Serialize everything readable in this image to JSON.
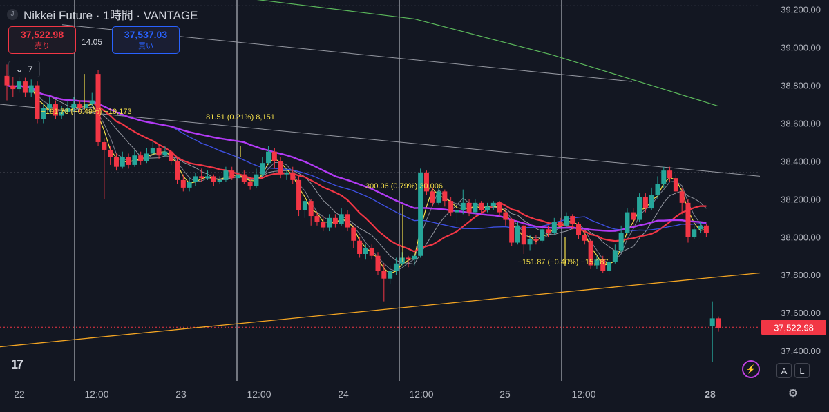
{
  "header": {
    "symbol_letter": "J",
    "title": "Nikkei Future · 1時間 · VANTAGE"
  },
  "trade": {
    "sell_price": "37,522.98",
    "sell_label": "売り",
    "spread": "14.05",
    "buy_price": "37,537.03",
    "buy_label": "買い"
  },
  "indicators_count": "7",
  "scale_buttons": {
    "auto": "A",
    "log": "L"
  },
  "colors": {
    "background": "#131722",
    "up": "#26a69a",
    "down": "#f23645",
    "ma_yellow": "#f5e04a",
    "ma_red": "#f23645",
    "ma_purple": "#b23af5",
    "ma_blue": "#3d4fe0",
    "ma_gray": "#9598a1",
    "trend_orange": "#f5a623",
    "trend_green": "#5bb85b"
  },
  "chart_data": {
    "type": "candlestick",
    "y_ticks": [
      "39,200.00",
      "39,000.00",
      "38,800.00",
      "38,600.00",
      "38,400.00",
      "38,200.00",
      "38,000.00",
      "37,800.00",
      "37,600.00",
      "37,400.00"
    ],
    "ylim": [
      37240,
      39250
    ],
    "x_labels": [
      "22",
      "12:00",
      "23",
      "12:00",
      "24",
      "12:00",
      "25",
      "12:00",
      "28"
    ],
    "current_price_label": "37,522.98",
    "annotations": [
      "−191.73 (−0.49%) −19,173",
      "81.51 (0.21%) 8,151",
      "300.06 (0.79%) 30,006",
      "−151.87 (−0.40%) −15,187"
    ],
    "candles": [
      [
        38850,
        38800,
        38910,
        38720
      ],
      [
        38800,
        38780,
        38850,
        38740
      ],
      [
        38780,
        38820,
        38860,
        38760
      ],
      [
        38820,
        38760,
        38840,
        38740
      ],
      [
        38760,
        38800,
        38830,
        38740
      ],
      [
        38800,
        38620,
        38820,
        38600
      ],
      [
        38620,
        38680,
        38700,
        38600
      ],
      [
        38680,
        38700,
        38740,
        38660
      ],
      [
        38700,
        38640,
        38720,
        38620
      ],
      [
        38640,
        38660,
        38690,
        38620
      ],
      [
        38660,
        38680,
        38720,
        38650
      ],
      [
        38680,
        38700,
        38740,
        38660
      ],
      [
        38700,
        38680,
        38720,
        38660
      ],
      [
        38680,
        38700,
        38730,
        38670
      ],
      [
        38700,
        38720,
        38760,
        38690
      ],
      [
        38860,
        38500,
        38880,
        38480
      ],
      [
        38500,
        38460,
        38520,
        38200
      ],
      [
        38460,
        38420,
        38480,
        38380
      ],
      [
        38420,
        38370,
        38440,
        38350
      ],
      [
        38370,
        38420,
        38450,
        38360
      ],
      [
        38420,
        38380,
        38440,
        38360
      ],
      [
        38380,
        38430,
        38460,
        38370
      ],
      [
        38430,
        38400,
        38450,
        38380
      ],
      [
        38400,
        38440,
        38470,
        38390
      ],
      [
        38440,
        38470,
        38510,
        38430
      ],
      [
        38470,
        38430,
        38490,
        38410
      ],
      [
        38430,
        38450,
        38480,
        38420
      ],
      [
        38450,
        38400,
        38460,
        38380
      ],
      [
        38400,
        38300,
        38420,
        38280
      ],
      [
        38300,
        38260,
        38330,
        38240
      ],
      [
        38260,
        38290,
        38310,
        38240
      ],
      [
        38290,
        38320,
        38340,
        38270
      ],
      [
        38320,
        38310,
        38360,
        38290
      ],
      [
        38310,
        38320,
        38350,
        38300
      ],
      [
        38320,
        38290,
        38330,
        38270
      ],
      [
        38290,
        38300,
        38320,
        38280
      ],
      [
        38300,
        38350,
        38370,
        38290
      ],
      [
        38350,
        38310,
        38370,
        38300
      ],
      [
        38310,
        38330,
        38350,
        38290
      ],
      [
        38330,
        38290,
        38350,
        38280
      ],
      [
        38290,
        38270,
        38310,
        38250
      ],
      [
        38270,
        38330,
        38360,
        38260
      ],
      [
        38330,
        38390,
        38420,
        38320
      ],
      [
        38390,
        38450,
        38480,
        38380
      ],
      [
        38450,
        38400,
        38470,
        38360
      ],
      [
        38400,
        38330,
        38420,
        38310
      ],
      [
        38330,
        38340,
        38360,
        38300
      ],
      [
        38340,
        38300,
        38370,
        38280
      ],
      [
        38300,
        38140,
        38320,
        38110
      ],
      [
        38140,
        38190,
        38200,
        38100
      ],
      [
        38190,
        38110,
        38200,
        38060
      ],
      [
        38110,
        38080,
        38130,
        38060
      ],
      [
        38080,
        38050,
        38110,
        38030
      ],
      [
        38050,
        38100,
        38120,
        38030
      ],
      [
        38100,
        38070,
        38120,
        38050
      ],
      [
        38070,
        38120,
        38150,
        38060
      ],
      [
        38120,
        38050,
        38140,
        38030
      ],
      [
        38050,
        37980,
        38060,
        37940
      ],
      [
        37980,
        37910,
        38000,
        37890
      ],
      [
        37910,
        37940,
        37960,
        37880
      ],
      [
        37940,
        37900,
        37960,
        37880
      ],
      [
        37900,
        37820,
        37920,
        37800
      ],
      [
        37820,
        37780,
        37860,
        37660
      ],
      [
        37780,
        37820,
        37850,
        37750
      ],
      [
        37820,
        37860,
        37890,
        37800
      ],
      [
        37860,
        37890,
        37920,
        37850
      ],
      [
        37890,
        37880,
        37900,
        37840
      ],
      [
        37880,
        37900,
        37910,
        37850
      ],
      [
        37900,
        38340,
        38360,
        37890
      ],
      [
        38340,
        38240,
        38350,
        38220
      ],
      [
        38240,
        38180,
        38260,
        38160
      ],
      [
        38180,
        38240,
        38260,
        38170
      ],
      [
        38240,
        38190,
        38250,
        38160
      ],
      [
        38190,
        38130,
        38210,
        38110
      ],
      [
        38130,
        38140,
        38150,
        38070
      ],
      [
        38140,
        38180,
        38250,
        38120
      ],
      [
        38180,
        38130,
        38200,
        38110
      ],
      [
        38130,
        38180,
        38200,
        38120
      ],
      [
        38180,
        38140,
        38190,
        38120
      ],
      [
        38140,
        38160,
        38180,
        38130
      ],
      [
        38160,
        38180,
        38190,
        38140
      ],
      [
        38180,
        38130,
        38190,
        38110
      ],
      [
        38130,
        38090,
        38150,
        38060
      ],
      [
        38090,
        37970,
        38100,
        37950
      ],
      [
        37970,
        38060,
        38080,
        37960
      ],
      [
        38060,
        37960,
        38080,
        37910
      ],
      [
        37960,
        37990,
        38010,
        37930
      ],
      [
        37990,
        37980,
        38010,
        37960
      ],
      [
        37980,
        38040,
        38050,
        37970
      ],
      [
        38040,
        38020,
        38060,
        38000
      ],
      [
        38020,
        38080,
        38100,
        38010
      ],
      [
        38080,
        38060,
        38100,
        38050
      ],
      [
        38060,
        38110,
        38130,
        38050
      ],
      [
        38110,
        38070,
        38120,
        38040
      ],
      [
        38070,
        38010,
        38080,
        37990
      ],
      [
        38010,
        37980,
        38030,
        37960
      ],
      [
        37980,
        37850,
        37990,
        37830
      ],
      [
        37850,
        37880,
        37900,
        37830
      ],
      [
        37880,
        37820,
        37900,
        37810
      ],
      [
        37820,
        37870,
        37890,
        37800
      ],
      [
        37870,
        37930,
        37960,
        37860
      ],
      [
        37930,
        38020,
        38060,
        37920
      ],
      [
        38020,
        38130,
        38150,
        38010
      ],
      [
        38130,
        38090,
        38150,
        38060
      ],
      [
        38090,
        38210,
        38230,
        38080
      ],
      [
        38210,
        38150,
        38230,
        38130
      ],
      [
        38150,
        38220,
        38260,
        38140
      ],
      [
        38220,
        38280,
        38320,
        38200
      ],
      [
        38280,
        38350,
        38370,
        38260
      ],
      [
        38350,
        38310,
        38370,
        38290
      ],
      [
        38310,
        38240,
        38330,
        38220
      ],
      [
        38240,
        38180,
        38260,
        38120
      ],
      [
        38180,
        38000,
        38200,
        37970
      ],
      [
        38000,
        38040,
        38060,
        37990
      ],
      [
        38040,
        38060,
        38080,
        38020
      ],
      [
        38060,
        38020,
        38070,
        38000
      ],
      [
        37530,
        37570,
        37660,
        37340
      ],
      [
        37570,
        37520,
        37580,
        37500
      ]
    ]
  }
}
